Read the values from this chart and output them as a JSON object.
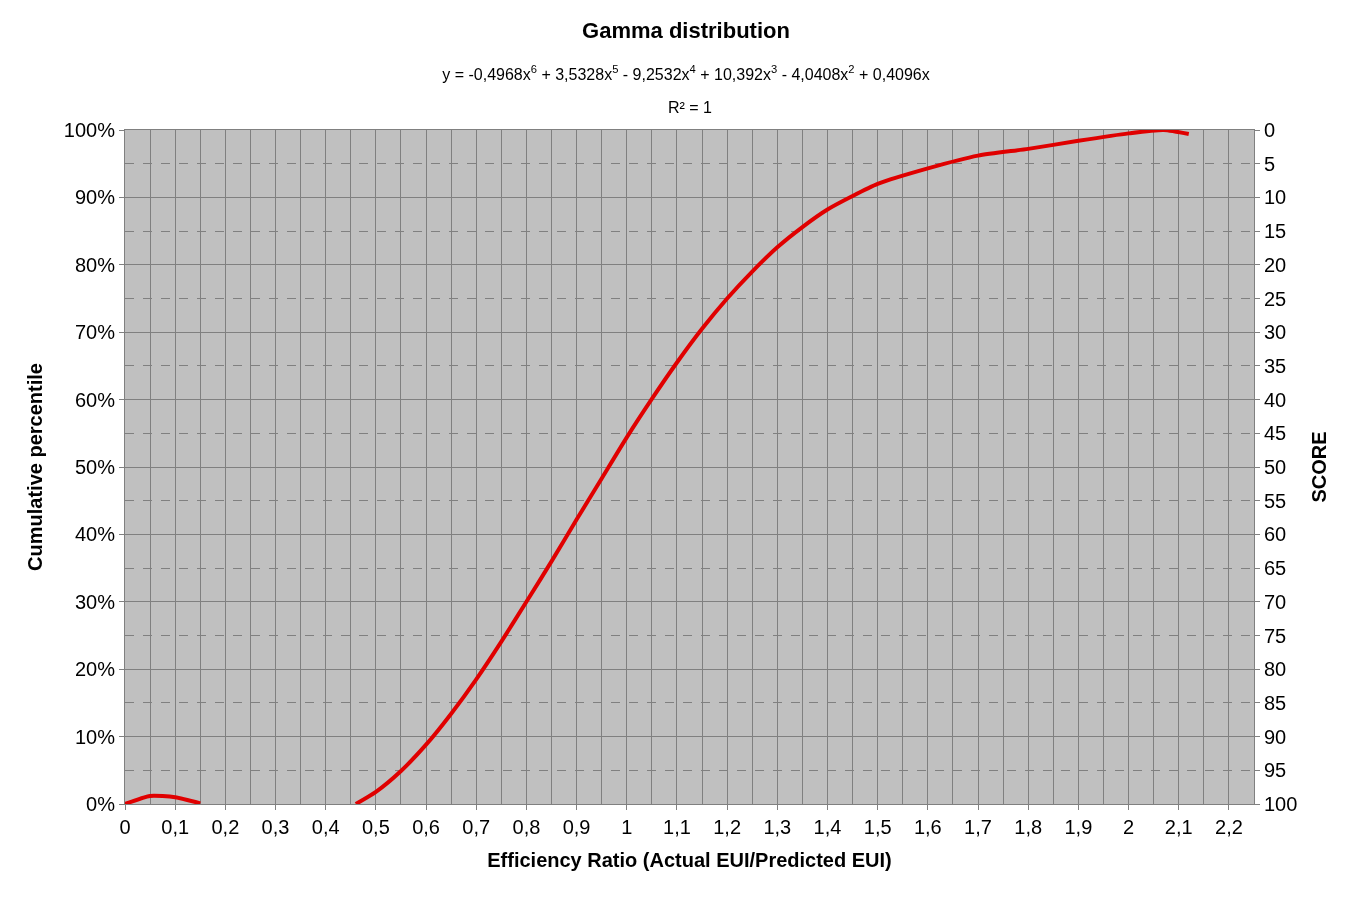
{
  "chart_data": {
    "type": "line",
    "title": "Gamma distribution",
    "subtitle": "y = -0,4968x$^{6}$ + 3,5328x$^{5}$ - 9,2532x$^{4}$ + 10,392x$^{3}$ - 4,0408x$^{2}$ + 0,4096x",
    "annotations": [
      "R² = 1"
    ],
    "xlabel": "Efficiency Ratio (Actual EUI/Predicted EUI)",
    "ylabel": "Cumulative percentile",
    "y2label": "SCORE",
    "x": [
      0,
      0.05,
      0.1,
      0.15,
      0.2,
      0.3,
      0.4,
      0.46,
      0.5,
      0.55,
      0.6,
      0.65,
      0.7,
      0.75,
      0.8,
      0.85,
      0.9,
      0.95,
      1.0,
      1.05,
      1.1,
      1.15,
      1.2,
      1.25,
      1.3,
      1.35,
      1.4,
      1.45,
      1.5,
      1.6,
      1.7,
      1.8,
      1.9,
      2.0,
      2.07,
      2.12
    ],
    "series": [
      {
        "color": "#e00000",
        "values": [
          0,
          0.012,
          0.01,
          0.001,
          null,
          null,
          null,
          0,
          0.018,
          0.049,
          0.088,
          0.134,
          0.185,
          0.241,
          0.3,
          0.36,
          0.422,
          0.483,
          0.544,
          0.601,
          0.655,
          0.705,
          0.75,
          0.79,
          0.826,
          0.856,
          0.882,
          0.902,
          0.92,
          0.943,
          0.962,
          0.972,
          0.984,
          0.995,
          1.0,
          0.994
        ]
      }
    ],
    "xlim": [
      0,
      2.25
    ],
    "xticks": [
      0,
      {
        "value": 0.1,
        "label": "0,1"
      },
      {
        "value": 0.2,
        "label": "0,2"
      },
      {
        "value": 0.3,
        "label": "0,3"
      },
      {
        "value": 0.4,
        "label": "0,4"
      },
      {
        "value": 0.5,
        "label": "0,5"
      },
      {
        "value": 0.6,
        "label": "0,6"
      },
      {
        "value": 0.7,
        "label": "0,7"
      },
      {
        "value": 0.8,
        "label": "0,8"
      },
      {
        "value": 0.9,
        "label": "0,9"
      },
      1,
      {
        "value": 1.1,
        "label": "1,1"
      },
      {
        "value": 1.2,
        "label": "1,2"
      },
      {
        "value": 1.3,
        "label": "1,3"
      },
      {
        "value": 1.4,
        "label": "1,4"
      },
      {
        "value": 1.5,
        "label": "1,5"
      },
      {
        "value": 1.6,
        "label": "1,6"
      },
      {
        "value": 1.7,
        "label": "1,7"
      },
      {
        "value": 1.8,
        "label": "1,8"
      },
      {
        "value": 1.9,
        "label": "1,9"
      },
      2,
      {
        "value": 2.1,
        "label": "2,1"
      },
      {
        "value": 2.2,
        "label": "2,2"
      }
    ],
    "ylim": [
      0,
      1
    ],
    "yticks": [
      {
        "value": 0,
        "label": "0%"
      },
      {
        "value": 0.1,
        "label": "10%"
      },
      {
        "value": 0.2,
        "label": "20%"
      },
      {
        "value": 0.3,
        "label": "30%"
      },
      {
        "value": 0.4,
        "label": "40%"
      },
      {
        "value": 0.5,
        "label": "50%"
      },
      {
        "value": 0.6,
        "label": "60%"
      },
      {
        "value": 0.7,
        "label": "70%"
      },
      {
        "value": 0.8,
        "label": "80%"
      },
      {
        "value": 0.9,
        "label": "90%"
      },
      {
        "value": 1,
        "label": "100%"
      }
    ],
    "y2lim": [
      100,
      0
    ],
    "y2ticks": [
      0,
      5,
      10,
      15,
      20,
      25,
      30,
      35,
      40,
      45,
      50,
      55,
      60,
      65,
      70,
      75,
      80,
      85,
      90,
      95,
      100
    ],
    "grid": true,
    "marker": "none",
    "line_style": "solid"
  }
}
